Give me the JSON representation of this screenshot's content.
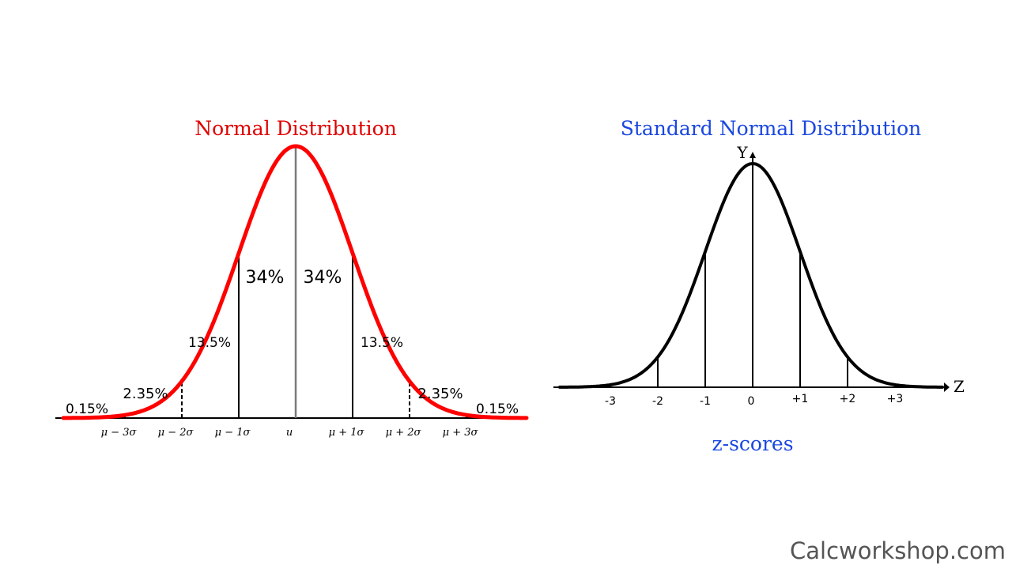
{
  "left": {
    "title": "Normal Distribution",
    "title_color": "#e00000",
    "curve_color": "#ff0000",
    "mean_line_color": "#7a7a7a",
    "region_labels": [
      "0.15%",
      "2.35%",
      "13.5%",
      "34%",
      "34%",
      "13.5%",
      "2.35%",
      "0.15%"
    ],
    "axis_labels": [
      "μ − 3σ",
      "μ − 2σ",
      "μ − 1σ",
      "u",
      "μ + 1σ",
      "μ + 2σ",
      "μ + 3σ"
    ]
  },
  "right": {
    "title": "Standard Normal Distribution",
    "title_color": "#1a47e0",
    "y_label": "Y",
    "z_label": "Z",
    "ticks": [
      "-3",
      "-2",
      "-1",
      "0",
      "+1",
      "+2",
      "+3"
    ],
    "caption": "z-scores",
    "caption_color": "#1a47e0"
  },
  "watermark": "Calcworkshop.com"
}
